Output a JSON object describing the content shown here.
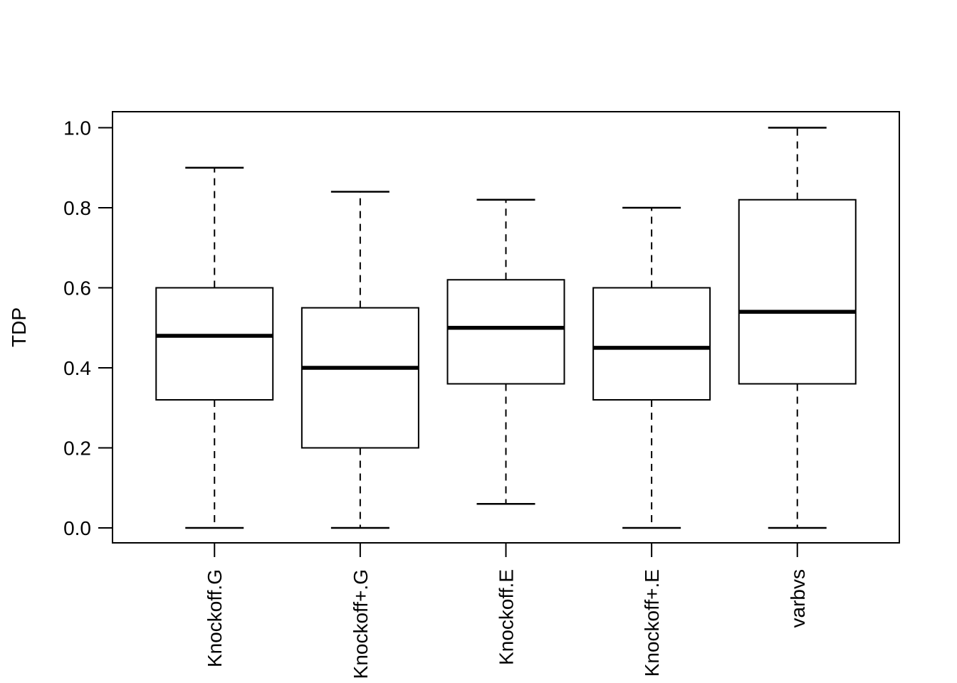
{
  "figure": {
    "description": "R-style base-graphics boxplot, black strokes on white background",
    "background_color": "#FFFFFF",
    "stroke_color": "#000000"
  },
  "chart_data": {
    "type": "boxplot",
    "title": "",
    "xlabel": "",
    "ylabel": "TDP",
    "ylim": [
      0.0,
      1.0
    ],
    "grid": false,
    "legend": null,
    "y_tick_values": [
      0.0,
      0.2,
      0.4,
      0.6,
      0.8,
      1.0
    ],
    "y_tick_labels": [
      "0.0",
      "0.2",
      "0.4",
      "0.6",
      "0.8",
      "1.0"
    ],
    "x_tick_label_rotation_degrees": 90,
    "categories": [
      "Knockoff.G",
      "Knockoff+.G",
      "Knockoff.E",
      "Knockoff+.E",
      "varbvs"
    ],
    "series": [
      {
        "label": "Knockoff.G",
        "whisker_min": 0.0,
        "q1": 0.32,
        "median": 0.48,
        "q3": 0.6,
        "whisker_max": 0.9
      },
      {
        "label": "Knockoff+.G",
        "whisker_min": 0.0,
        "q1": 0.2,
        "median": 0.4,
        "q3": 0.55,
        "whisker_max": 0.84
      },
      {
        "label": "Knockoff.E",
        "whisker_min": 0.06,
        "q1": 0.36,
        "median": 0.5,
        "q3": 0.62,
        "whisker_max": 0.82
      },
      {
        "label": "Knockoff+.E",
        "whisker_min": 0.0,
        "q1": 0.32,
        "median": 0.45,
        "q3": 0.6,
        "whisker_max": 0.8
      },
      {
        "label": "varbvs",
        "whisker_min": 0.0,
        "q1": 0.36,
        "median": 0.54,
        "q3": 0.82,
        "whisker_max": 1.0
      }
    ],
    "colors": {
      "line": "#000000",
      "median_line": "#000000",
      "box_fill": "#FFFFFF",
      "background": "#FFFFFF"
    }
  }
}
